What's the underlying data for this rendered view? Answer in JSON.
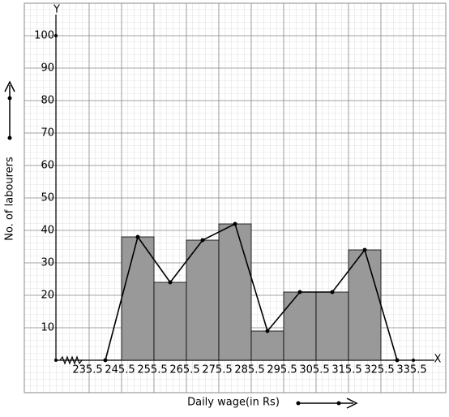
{
  "chart_data": {
    "type": "histogram",
    "x_label": "Daily wage(in Rs)",
    "y_label": "No. of labourers",
    "x_axis_letter": "X",
    "y_axis_letter": "Y",
    "bins": [
      245.5,
      255.5,
      265.5,
      275.5,
      285.5,
      295.5,
      305.5,
      315.5,
      325.5
    ],
    "values": [
      38,
      24,
      37,
      42,
      9,
      21,
      21,
      34
    ],
    "color": "#999999",
    "polygon": {
      "x": [
        240.5,
        250.5,
        260.5,
        270.5,
        280.5,
        290.5,
        300.5,
        310.5,
        320.5,
        330.5
      ],
      "values": [
        0,
        38,
        24,
        37,
        42,
        9,
        21,
        21,
        34,
        0
      ],
      "color": "#000000"
    },
    "xlim": [
      225.5,
      345.5
    ],
    "ylim": [
      -10,
      110
    ],
    "xticks": [
      235.5,
      245.5,
      255.5,
      265.5,
      275.5,
      285.5,
      295.5,
      305.5,
      315.5,
      325.5,
      335.5
    ],
    "yticks": [
      10,
      20,
      30,
      40,
      50,
      60,
      70,
      80,
      90,
      100
    ],
    "grid": true
  }
}
